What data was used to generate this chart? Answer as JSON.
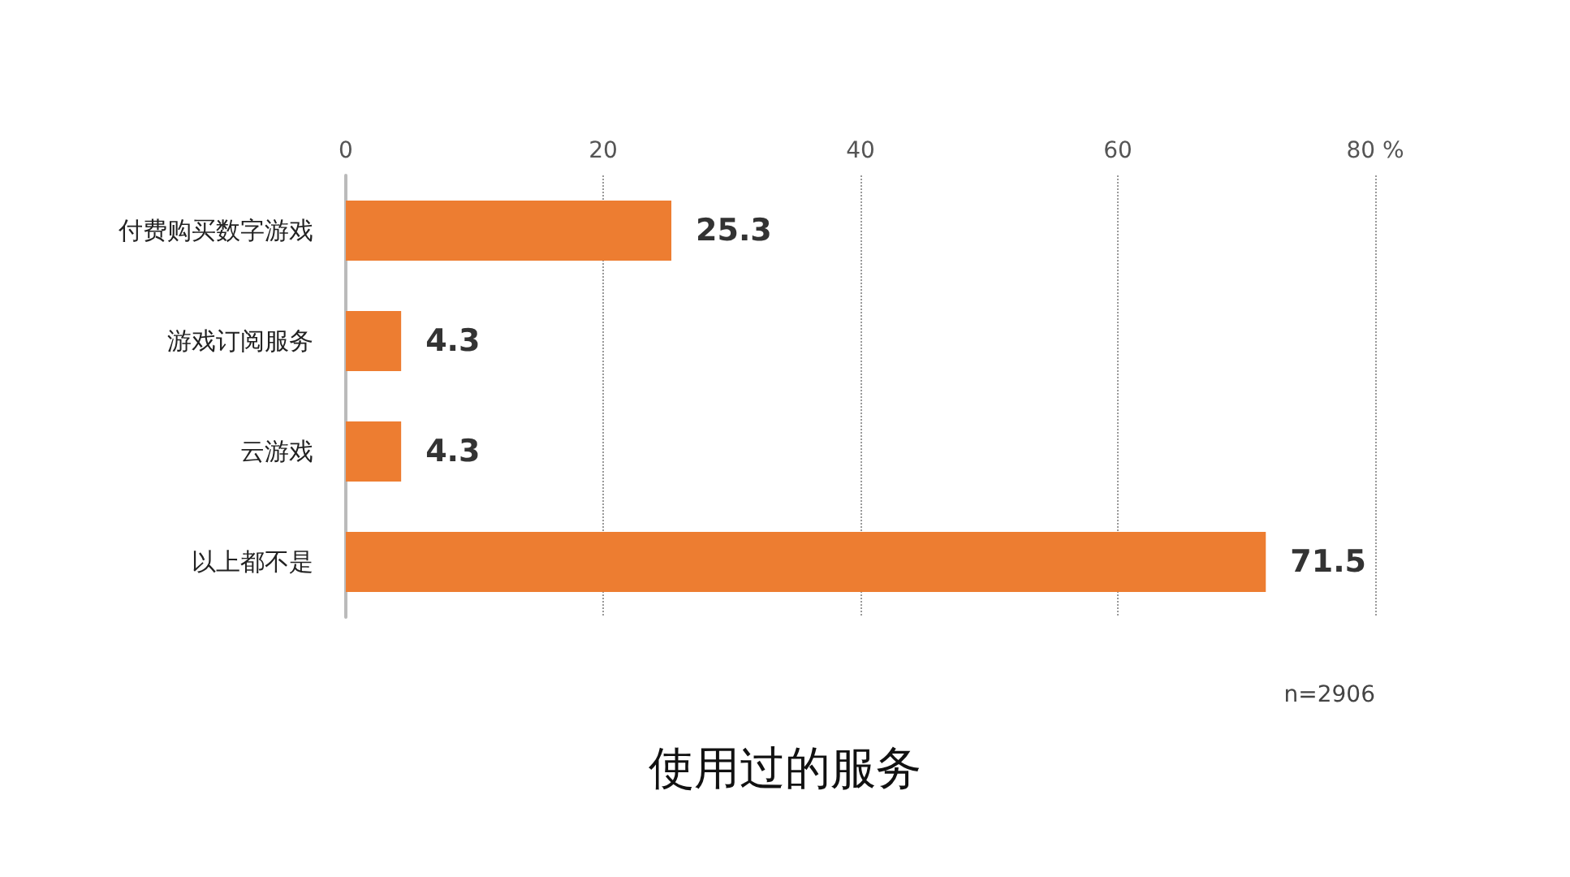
{
  "chart_data": {
    "type": "bar",
    "orientation": "horizontal",
    "title": "使用过的服务",
    "categories": [
      "付费购买数字游戏",
      "游戏订阅服务",
      "云游戏",
      "以上都不是"
    ],
    "values": [
      25.3,
      4.3,
      4.3,
      71.5
    ],
    "color": "#ed7d31",
    "xlim": [
      0,
      80
    ],
    "xticks": [
      0,
      20,
      40,
      60,
      {
        "value": 80,
        "label": "80 %"
      }
    ],
    "grid": "x",
    "data_labels": true,
    "annotations": [
      "n=2906"
    ]
  }
}
